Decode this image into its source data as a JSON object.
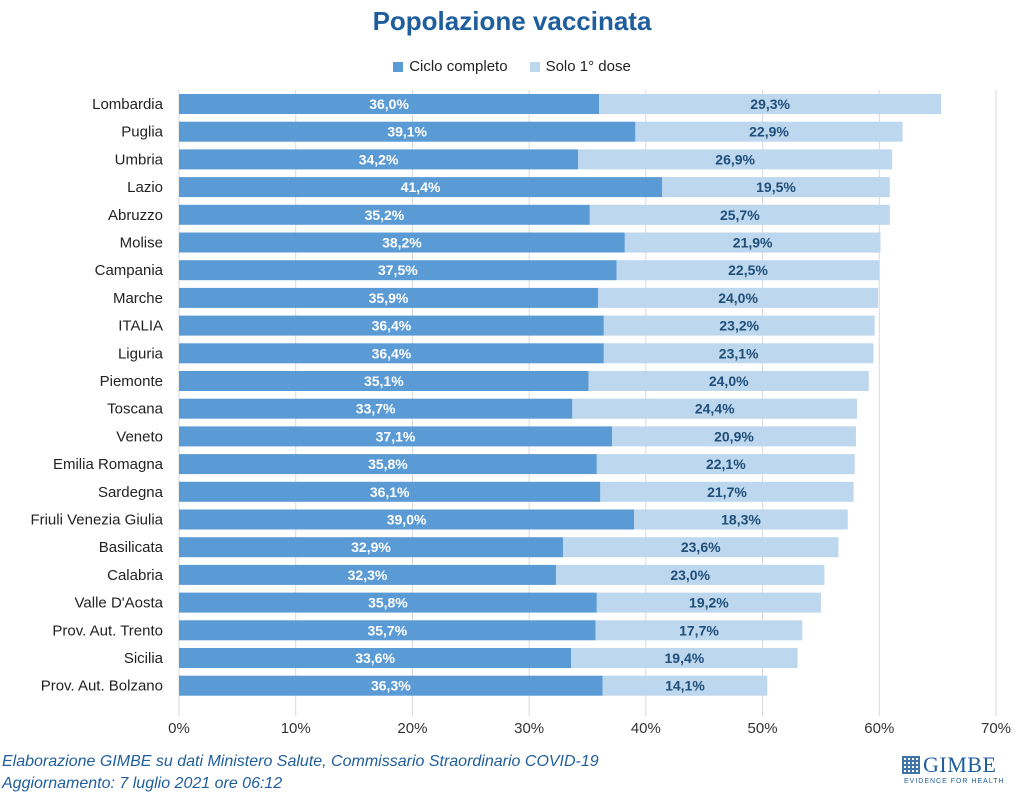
{
  "colors": {
    "primary": "#5b9bd5",
    "secondary": "#bdd7ee",
    "title": "#1f5e9c",
    "grid": "#d9d9d9",
    "label_on_primary": "#ffffff",
    "label_on_secondary": "#1f4e79"
  },
  "chart_data": {
    "type": "bar",
    "orientation": "horizontal",
    "stacked": true,
    "title": "Popolazione vaccinata",
    "legend_position": "top",
    "grid": true,
    "xlim": [
      0,
      70
    ],
    "x_ticks": [
      "0%",
      "10%",
      "20%",
      "30%",
      "40%",
      "50%",
      "60%",
      "70%"
    ],
    "x_tick_values": [
      0,
      10,
      20,
      30,
      40,
      50,
      60,
      70
    ],
    "categories": [
      "Lombardia",
      "Puglia",
      "Umbria",
      "Lazio",
      "Abruzzo",
      "Molise",
      "Campania",
      "Marche",
      "ITALIA",
      "Liguria",
      "Piemonte",
      "Toscana",
      "Veneto",
      "Emilia Romagna",
      "Sardegna",
      "Friuli Venezia Giulia",
      "Basilicata",
      "Calabria",
      "Valle D'Aosta",
      "Prov. Aut. Trento",
      "Sicilia",
      "Prov. Aut. Bolzano"
    ],
    "series": [
      {
        "name": "Ciclo completo",
        "values": [
          36.0,
          39.1,
          34.2,
          41.4,
          35.2,
          38.2,
          37.5,
          35.9,
          36.4,
          36.4,
          35.1,
          33.7,
          37.1,
          35.8,
          36.1,
          39.0,
          32.9,
          32.3,
          35.8,
          35.7,
          33.6,
          36.3
        ],
        "labels": [
          "36,0%",
          "39,1%",
          "34,2%",
          "41,4%",
          "35,2%",
          "38,2%",
          "37,5%",
          "35,9%",
          "36,4%",
          "36,4%",
          "35,1%",
          "33,7%",
          "37,1%",
          "35,8%",
          "36,1%",
          "39,0%",
          "32,9%",
          "32,3%",
          "35,8%",
          "35,7%",
          "33,6%",
          "36,3%"
        ]
      },
      {
        "name": "Solo 1° dose",
        "values": [
          29.3,
          22.9,
          26.9,
          19.5,
          25.7,
          21.9,
          22.5,
          24.0,
          23.2,
          23.1,
          24.0,
          24.4,
          20.9,
          22.1,
          21.7,
          18.3,
          23.6,
          23.0,
          19.2,
          17.7,
          19.4,
          14.1
        ],
        "labels": [
          "29,3%",
          "22,9%",
          "26,9%",
          "19,5%",
          "25,7%",
          "21,9%",
          "22,5%",
          "24,0%",
          "23,2%",
          "23,1%",
          "24,0%",
          "24,4%",
          "20,9%",
          "22,1%",
          "21,7%",
          "18,3%",
          "23,6%",
          "23,0%",
          "19,2%",
          "17,7%",
          "19,4%",
          "14,1%"
        ]
      }
    ]
  },
  "footer": {
    "source": "Elaborazione GIMBE su dati Ministero Salute, Commissario Straordinario COVID-19",
    "updated": "Aggiornamento: 7 luglio 2021 ore 06:12"
  },
  "logo": {
    "name": "GIMBE",
    "tagline": "EVIDENCE FOR HEALTH"
  }
}
